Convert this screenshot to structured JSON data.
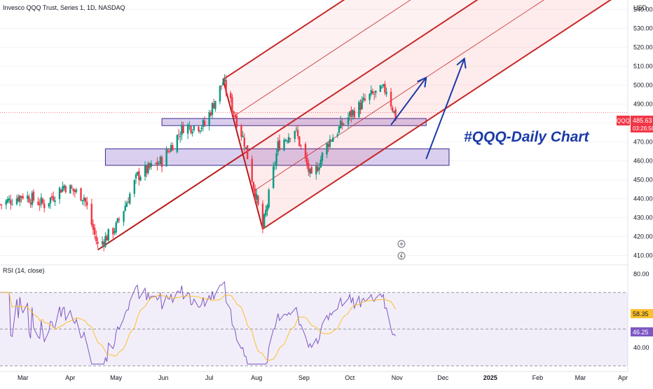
{
  "header": {
    "title": "Invesco QQQ Trust, Series 1, 1D, NASDAQ",
    "currency": "USD"
  },
  "price_scale": {
    "ticks": [
      410,
      420,
      430,
      440,
      450,
      460,
      470,
      480,
      490,
      500,
      510,
      520,
      530,
      540
    ],
    "tick_labels": [
      "410.00",
      "420.00",
      "430.00",
      "440.00",
      "450.00",
      "460.00",
      "470.00",
      "480.00",
      "490.00",
      "500.00",
      "510.00",
      "520.00",
      "530.00",
      "540.00"
    ],
    "symbol_badge": "QQQ",
    "last_price_label": "485.63",
    "countdown_label": "03:26:58",
    "last_price": 485.63
  },
  "rsi_panel": {
    "label": "RSI (14, close)",
    "ticks": [
      40,
      80
    ],
    "tick_labels": [
      "40.00",
      "80.00"
    ],
    "rsi_value_label": "46.25",
    "ma_value_label": "58.35",
    "rsi_value": 46.25,
    "ma_value": 58.35,
    "band_upper": 70,
    "band_lower": 30,
    "mid": 50
  },
  "time_axis": {
    "labels": [
      "Mar",
      "Apr",
      "May",
      "Jun",
      "Jul",
      "Aug",
      "Sep",
      "Oct",
      "Nov",
      "Dec",
      "2025",
      "Feb",
      "Mar",
      "Apr"
    ]
  },
  "annotation": {
    "text": "#QQQ-Daily Chart"
  },
  "chart_data": {
    "type": "candlestick",
    "title": "Invesco QQQ Trust, Series 1, 1D, NASDAQ",
    "x_range": [
      "2024-02-15",
      "2025-04-01"
    ],
    "y_range": [
      405,
      545
    ],
    "support_zones": [
      {
        "from": "2024-05-31",
        "to": "2024-11-20",
        "low": 479,
        "high": 482
      },
      {
        "from": "2024-04-24",
        "to": "2024-12-05",
        "low": 458,
        "high": 466
      }
    ],
    "pitchfork": {
      "pivots": [
        {
          "date": "2024-04-19",
          "price": 413
        },
        {
          "date": "2024-07-10",
          "price": 503
        },
        {
          "date": "2024-08-05",
          "price": 424
        }
      ]
    },
    "projection_arrows": [
      {
        "from_date": "2024-10-28",
        "from_price": 479,
        "to_date": "2024-11-20",
        "to_price": 504
      },
      {
        "from_date": "2024-11-20",
        "from_price": 461,
        "to_date": "2024-12-15",
        "to_price": 514
      }
    ],
    "rsi": {
      "period": 14,
      "last": 46.25,
      "ma_last": 58.35,
      "range": [
        30,
        85
      ]
    }
  }
}
